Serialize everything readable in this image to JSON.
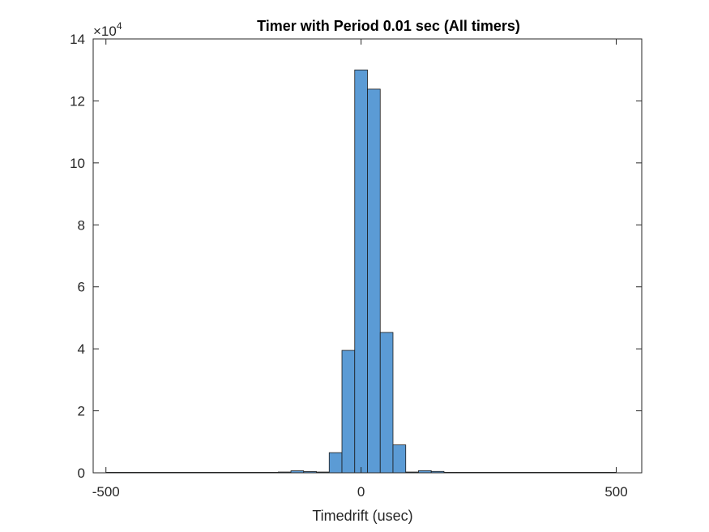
{
  "chart_data": {
    "type": "bar",
    "title": "Timer with Period 0.01 sec (All timers)",
    "xlabel": "Timedrift (usec)",
    "ylabel": "",
    "xlim": [
      -525,
      550
    ],
    "ylim": [
      0,
      140000
    ],
    "y_exponent_label": "×10",
    "y_exponent_power": "4",
    "y_tick_values": [
      0,
      20000,
      40000,
      60000,
      80000,
      100000,
      120000,
      140000
    ],
    "y_tick_labels": [
      "0",
      "2",
      "4",
      "6",
      "8",
      "10",
      "12",
      "14"
    ],
    "x_tick_values": [
      -500,
      0,
      500
    ],
    "x_tick_labels": [
      "-500",
      "0",
      "500"
    ],
    "bar_color": "#5b9bd5",
    "edge_color": "#1a1a1a",
    "bin_width": 25,
    "bin_edges_start": -162.5,
    "values": [
      250,
      650,
      400,
      250,
      6500,
      39500,
      130000,
      123800,
      45300,
      9000,
      250,
      700,
      450,
      150
    ],
    "tail_bins": [
      {
        "start": -500,
        "end": -162.5,
        "value": 150
      },
      {
        "start": 187.5,
        "end": 500,
        "value": 150
      }
    ],
    "grid": false,
    "legend": "none"
  }
}
